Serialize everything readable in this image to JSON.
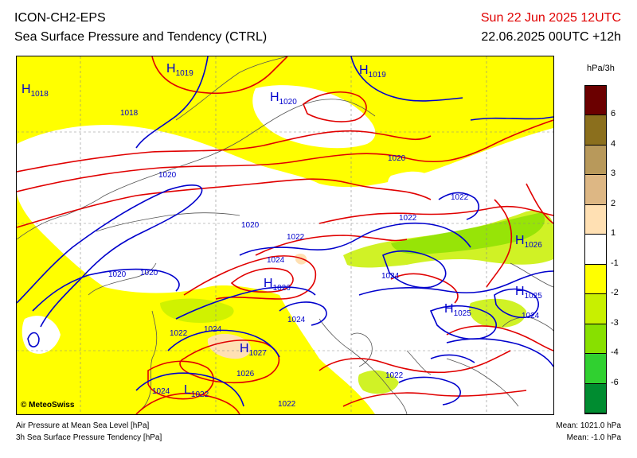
{
  "header": {
    "model": "ICON-CH2-EPS",
    "product": "Sea Surface Pressure and Tendency (CTRL)",
    "valid_time": "Sun 22 Jun 2025 12UTC",
    "run_info": "22.06.2025 00UTC +12h"
  },
  "legend": {
    "unit": "hPa/3h",
    "levels": [
      "6",
      "4",
      "3",
      "2",
      "1",
      "-1",
      "-2",
      "-3",
      "-4",
      "-6"
    ],
    "colors": [
      "#6b0000",
      "#8b6f1d",
      "#b8995b",
      "#ddb784",
      "#ffe0b3",
      "#ffffff",
      "#ffff00",
      "#c8f000",
      "#88e000",
      "#30d030",
      "#008c30"
    ]
  },
  "map": {
    "copyright": "© MeteoSwiss",
    "pressure_centers": [
      {
        "type": "H",
        "value": "1018"
      },
      {
        "type": "H",
        "value": "1019"
      },
      {
        "type": "H",
        "value": "1020"
      },
      {
        "type": "H",
        "value": "1019"
      },
      {
        "type": "H",
        "value": "1026"
      },
      {
        "type": "H",
        "value": "1026"
      },
      {
        "type": "H",
        "value": "1025"
      },
      {
        "type": "H",
        "value": "1025"
      },
      {
        "type": "H",
        "value": "1027"
      },
      {
        "type": "L",
        "value": "1022"
      }
    ],
    "isobar_labels": [
      "1018",
      "1020",
      "1020",
      "1020",
      "1020",
      "1020",
      "1022",
      "1022",
      "1022",
      "1022",
      "1022",
      "1024",
      "1024",
      "1024",
      "1024",
      "1024",
      "1024",
      "1026",
      "1022"
    ]
  },
  "footer": {
    "line1": "Air Pressure at Mean Sea Level [hPa]",
    "line2": "3h Sea Surface Pressure Tendency [hPa]",
    "mean1": "Mean: 1021.0 hPa",
    "mean2": "Mean:  -1.0 hPa"
  }
}
